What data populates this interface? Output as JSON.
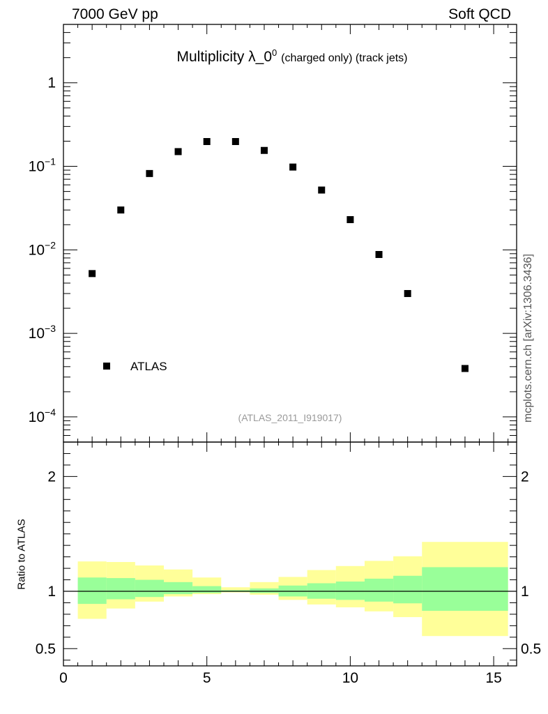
{
  "header": {
    "left": "7000 GeV pp",
    "right": "Soft QCD"
  },
  "side_label": "mcplots.cern.ch [arXiv:1306.3436]",
  "chart_data": [
    {
      "type": "scatter",
      "title": "Multiplicity λ_0",
      "title_superscript": "0",
      "title_small": "(charged only) (track jets)",
      "yscale": "log",
      "xlim": [
        0,
        15.8
      ],
      "ylim": [
        5e-05,
        5
      ],
      "series": [
        {
          "name": "ATLAS",
          "color": "#000000",
          "marker": "square",
          "x": [
            1,
            2,
            3,
            4,
            5,
            6,
            7,
            8,
            9,
            10,
            11,
            12,
            14
          ],
          "y": [
            0.0052,
            0.03,
            0.082,
            0.15,
            0.198,
            0.198,
            0.155,
            0.098,
            0.052,
            0.023,
            0.0088,
            0.003,
            0.00038
          ]
        }
      ],
      "y_ticks": [
        {
          "value": 1,
          "base": "1",
          "exp": ""
        },
        {
          "value": 0.1,
          "base": "10",
          "exp": "−1"
        },
        {
          "value": 0.01,
          "base": "10",
          "exp": "−2"
        },
        {
          "value": 0.001,
          "base": "10",
          "exp": "−3"
        },
        {
          "value": 0.0001,
          "base": "10",
          "exp": "−4"
        }
      ],
      "legend": {
        "placement": "bottom-left",
        "entries": [
          "ATLAS"
        ]
      },
      "annotation": "(ATLAS_2011_I919017)"
    },
    {
      "type": "area",
      "ylabel": "Ratio to ATLAS",
      "xlim": [
        0,
        15.8
      ],
      "ylim": [
        0.35,
        2.3
      ],
      "x_ticks": [
        0,
        5,
        10,
        15
      ],
      "y_ticks": [
        0.5,
        1,
        2
      ],
      "reference_line": 1,
      "bin_edges": [
        0.5,
        1.5,
        2.5,
        3.5,
        4.5,
        5.5,
        6.5,
        7.5,
        8.5,
        9.5,
        10.5,
        11.5,
        12.5,
        15.5
      ],
      "bands": [
        {
          "name": "stat",
          "color": "#99ff99",
          "low": [
            0.89,
            0.93,
            0.95,
            0.975,
            0.985,
            0.995,
            0.985,
            0.955,
            0.935,
            0.925,
            0.91,
            0.895,
            0.83
          ],
          "high": [
            1.12,
            1.115,
            1.1,
            1.08,
            1.045,
            1.01,
            1.025,
            1.05,
            1.07,
            1.085,
            1.11,
            1.135,
            1.21
          ]
        },
        {
          "name": "total",
          "color": "#ffff99",
          "low": [
            0.76,
            0.85,
            0.91,
            0.955,
            0.975,
            0.99,
            0.97,
            0.925,
            0.885,
            0.86,
            0.825,
            0.775,
            0.61
          ],
          "high": [
            1.26,
            1.255,
            1.225,
            1.19,
            1.12,
            1.035,
            1.08,
            1.125,
            1.185,
            1.22,
            1.265,
            1.305,
            1.43
          ]
        }
      ]
    }
  ]
}
